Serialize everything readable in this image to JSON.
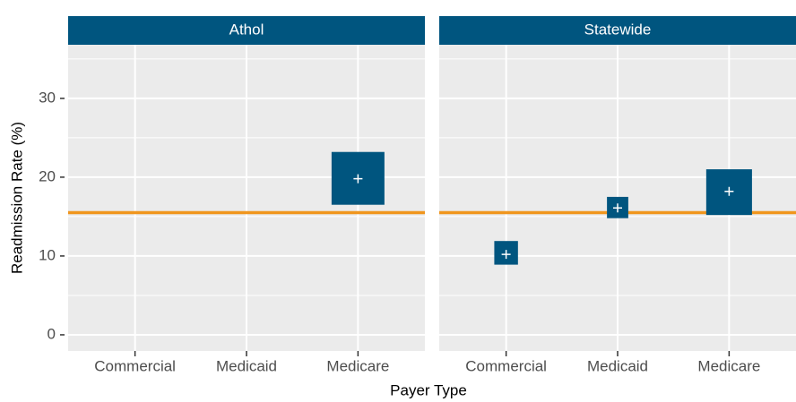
{
  "chart_data": {
    "type": "crossbar",
    "xlabel": "Payer Type",
    "ylabel": "Readmission Rate (%)",
    "ylim": [
      -2.05,
      36.8
    ],
    "yticks": [
      0,
      10,
      20,
      30
    ],
    "yminor": [
      5,
      15,
      25,
      35
    ],
    "grid": true,
    "color": "#00557f",
    "reference_line": 15.5,
    "reference_color": "#f0961e",
    "panels": [
      {
        "title": "Athol",
        "categories": [
          "Commercial",
          "Medicaid",
          "Medicare"
        ],
        "estimate": [
          null,
          null,
          19.8
        ],
        "lower": [
          null,
          null,
          16.5
        ],
        "upper": [
          null,
          null,
          23.2
        ]
      },
      {
        "title": "Statewide",
        "categories": [
          "Commercial",
          "Medicaid",
          "Medicare"
        ],
        "estimate": [
          10.2,
          16.1,
          18.2
        ],
        "lower": [
          8.9,
          14.8,
          15.2
        ],
        "upper": [
          11.9,
          17.5,
          21.0
        ]
      }
    ]
  }
}
